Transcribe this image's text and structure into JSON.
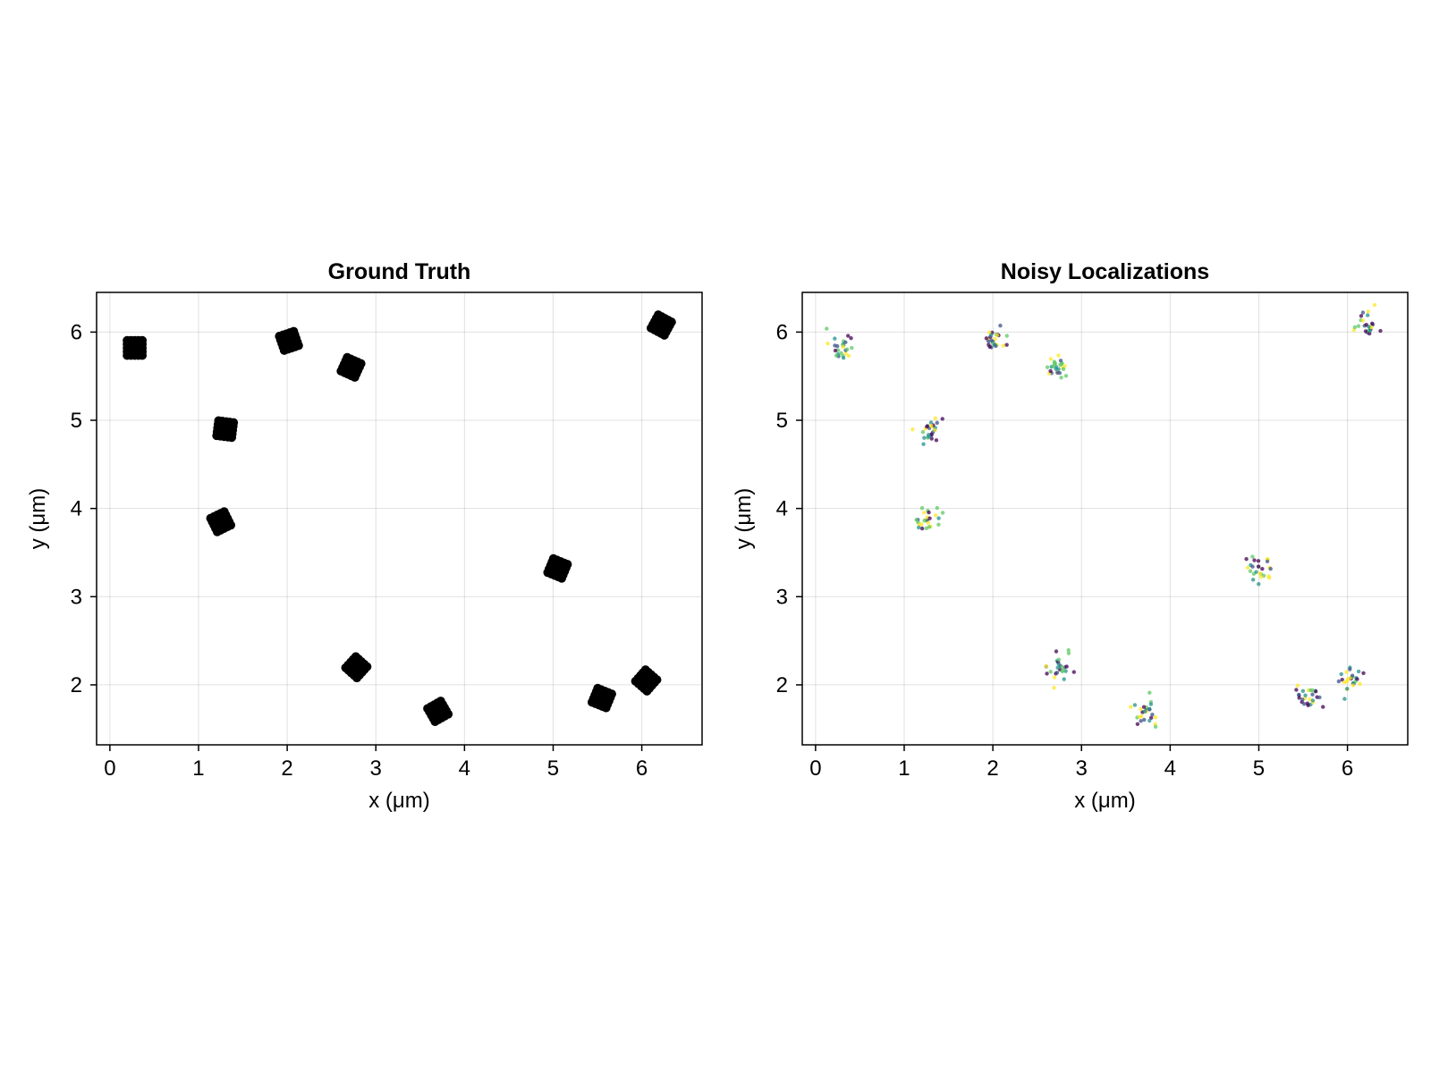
{
  "colors": {
    "ground_truth_marker": "#000000",
    "viridis": [
      "#440154",
      "#3b528b",
      "#21918c",
      "#5ec962",
      "#fde725"
    ]
  },
  "chart_data": [
    {
      "type": "scatter",
      "title": "Ground Truth",
      "xlabel": "x (μm)",
      "ylabel": "y (μm)",
      "xlim": [
        -0.15,
        6.68
      ],
      "ylim": [
        1.32,
        6.45
      ],
      "xticks": [
        0,
        1,
        2,
        3,
        4,
        5,
        6
      ],
      "yticks": [
        2,
        3,
        4,
        5,
        6
      ],
      "grid": true,
      "marker_color": "#000000",
      "cluster_centers": [
        {
          "x": 0.28,
          "y": 5.82
        },
        {
          "x": 1.3,
          "y": 4.9
        },
        {
          "x": 1.25,
          "y": 3.85
        },
        {
          "x": 2.02,
          "y": 5.9
        },
        {
          "x": 2.72,
          "y": 5.6
        },
        {
          "x": 2.78,
          "y": 2.2
        },
        {
          "x": 3.7,
          "y": 1.7
        },
        {
          "x": 5.05,
          "y": 3.32
        },
        {
          "x": 5.55,
          "y": 1.85
        },
        {
          "x": 6.05,
          "y": 2.05
        },
        {
          "x": 6.22,
          "y": 6.08
        }
      ]
    },
    {
      "type": "scatter",
      "title": "Noisy Localizations",
      "xlabel": "x (μm)",
      "ylabel": "y (μm)",
      "xlim": [
        -0.15,
        6.68
      ],
      "ylim": [
        1.32,
        6.45
      ],
      "xticks": [
        0,
        1,
        2,
        3,
        4,
        5,
        6
      ],
      "yticks": [
        2,
        3,
        4,
        5,
        6
      ],
      "grid": true,
      "colormap": "viridis",
      "cluster_centers": [
        {
          "x": 0.28,
          "y": 5.82
        },
        {
          "x": 1.3,
          "y": 4.88
        },
        {
          "x": 1.25,
          "y": 3.85
        },
        {
          "x": 2.02,
          "y": 5.92
        },
        {
          "x": 2.72,
          "y": 5.6
        },
        {
          "x": 2.78,
          "y": 2.18
        },
        {
          "x": 3.7,
          "y": 1.7
        },
        {
          "x": 5.03,
          "y": 3.3
        },
        {
          "x": 5.58,
          "y": 1.85
        },
        {
          "x": 6.05,
          "y": 2.05
        },
        {
          "x": 6.22,
          "y": 6.08
        }
      ]
    }
  ]
}
